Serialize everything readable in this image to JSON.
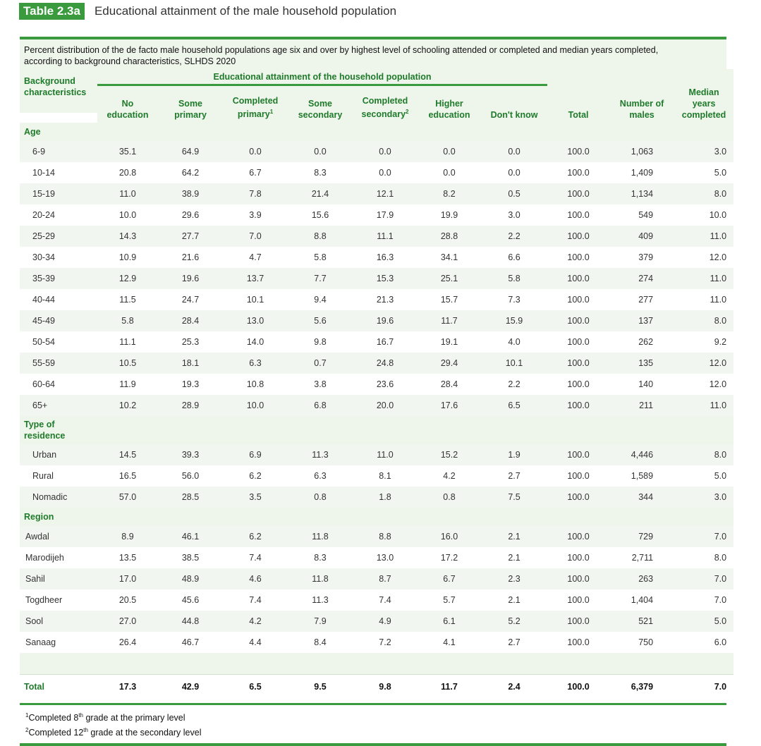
{
  "header": {
    "tag": "Table 2.3a",
    "title": "Educational attainment of the male household population"
  },
  "caption": {
    "line1": "Percent distribution of the de facto male household populations age six and over by highest level of schooling attended or completed and median years completed,",
    "line2": "according to background characteristics, SLHDS 2020"
  },
  "columns": {
    "background": [
      "Background",
      "characteristics"
    ],
    "group": "Educational attainment of the household population",
    "no_education": [
      "No",
      "education"
    ],
    "some_primary": [
      "Some",
      "primary"
    ],
    "completed_primary": [
      "Completed",
      "primary"
    ],
    "some_secondary": [
      "Some",
      "secondary"
    ],
    "completed_secondary": [
      "Completed",
      "secondary"
    ],
    "higher_education": [
      "Higher",
      "education"
    ],
    "dont_know": "Don't know",
    "total": "Total",
    "number_of_males": [
      "Number of",
      "males"
    ],
    "median": [
      "Median",
      "years",
      "completed"
    ],
    "sup1": "1",
    "sup2": "2"
  },
  "sections": [
    {
      "title": "Age",
      "rows": [
        {
          "label": "6-9",
          "cells": [
            "35.1",
            "64.9",
            "0.0",
            "0.0",
            "0.0",
            "0.0",
            "0.0",
            "100.0",
            "1,063",
            "3.0"
          ]
        },
        {
          "label": "10-14",
          "cells": [
            "20.8",
            "64.2",
            "6.7",
            "8.3",
            "0.0",
            "0.0",
            "0.0",
            "100.0",
            "1,409",
            "5.0"
          ]
        },
        {
          "label": "15-19",
          "cells": [
            "11.0",
            "38.9",
            "7.8",
            "21.4",
            "12.1",
            "8.2",
            "0.5",
            "100.0",
            "1,134",
            "8.0"
          ]
        },
        {
          "label": "20-24",
          "cells": [
            "10.0",
            "29.6",
            "3.9",
            "15.6",
            "17.9",
            "19.9",
            "3.0",
            "100.0",
            "549",
            "10.0"
          ]
        },
        {
          "label": "25-29",
          "cells": [
            "14.3",
            "27.7",
            "7.0",
            "8.8",
            "11.1",
            "28.8",
            "2.2",
            "100.0",
            "409",
            "11.0"
          ]
        },
        {
          "label": "30-34",
          "cells": [
            "10.9",
            "21.6",
            "4.7",
            "5.8",
            "16.3",
            "34.1",
            "6.6",
            "100.0",
            "379",
            "12.0"
          ]
        },
        {
          "label": "35-39",
          "cells": [
            "12.9",
            "19.6",
            "13.7",
            "7.7",
            "15.3",
            "25.1",
            "5.8",
            "100.0",
            "274",
            "11.0"
          ]
        },
        {
          "label": "40-44",
          "cells": [
            "11.5",
            "24.7",
            "10.1",
            "9.4",
            "21.3",
            "15.7",
            "7.3",
            "100.0",
            "277",
            "11.0"
          ]
        },
        {
          "label": "45-49",
          "cells": [
            "5.8",
            "28.4",
            "13.0",
            "5.6",
            "19.6",
            "11.7",
            "15.9",
            "100.0",
            "137",
            "8.0"
          ]
        },
        {
          "label": "50-54",
          "cells": [
            "11.1",
            "25.3",
            "14.0",
            "9.8",
            "16.7",
            "19.1",
            "4.0",
            "100.0",
            "262",
            "9.2"
          ]
        },
        {
          "label": "55-59",
          "cells": [
            "10.5",
            "18.1",
            "6.3",
            "0.7",
            "24.8",
            "29.4",
            "10.1",
            "100.0",
            "135",
            "12.0"
          ]
        },
        {
          "label": "60-64",
          "cells": [
            "11.9",
            "19.3",
            "10.8",
            "3.8",
            "23.6",
            "28.4",
            "2.2",
            "100.0",
            "140",
            "12.0"
          ]
        },
        {
          "label": "65+",
          "cells": [
            "10.2",
            "28.9",
            "10.0",
            "6.8",
            "20.0",
            "17.6",
            "6.5",
            "100.0",
            "211",
            "11.0"
          ]
        }
      ]
    },
    {
      "title_lines": [
        "Type of",
        "residence"
      ],
      "rows": [
        {
          "label": "Urban",
          "cells": [
            "14.5",
            "39.3",
            "6.9",
            "11.3",
            "11.0",
            "15.2",
            "1.9",
            "100.0",
            "4,446",
            "8.0"
          ]
        },
        {
          "label": "Rural",
          "cells": [
            "16.5",
            "56.0",
            "6.2",
            "6.3",
            "8.1",
            "4.2",
            "2.7",
            "100.0",
            "1,589",
            "5.0"
          ]
        },
        {
          "label": "Nomadic",
          "cells": [
            "57.0",
            "28.5",
            "3.5",
            "0.8",
            "1.8",
            "0.8",
            "7.5",
            "100.0",
            "344",
            "3.0"
          ]
        }
      ]
    },
    {
      "title": "Region",
      "rows": [
        {
          "label": "Awdal",
          "cells": [
            "8.9",
            "46.1",
            "6.2",
            "11.8",
            "8.8",
            "16.0",
            "2.1",
            "100.0",
            "729",
            "7.0"
          ]
        },
        {
          "label": "Marodijeh",
          "cells": [
            "13.5",
            "38.5",
            "7.4",
            "8.3",
            "13.0",
            "17.2",
            "2.1",
            "100.0",
            "2,711",
            "8.0"
          ]
        },
        {
          "label": "Sahil",
          "cells": [
            "17.0",
            "48.9",
            "4.6",
            "11.8",
            "8.7",
            "6.7",
            "2.3",
            "100.0",
            "263",
            "7.0"
          ]
        },
        {
          "label": "Togdheer",
          "cells": [
            "20.5",
            "45.6",
            "7.4",
            "11.3",
            "7.4",
            "5.7",
            "2.1",
            "100.0",
            "1,404",
            "7.0"
          ]
        },
        {
          "label": "Sool",
          "cells": [
            "27.0",
            "44.8",
            "4.2",
            "7.9",
            "4.9",
            "6.1",
            "5.2",
            "100.0",
            "521",
            "5.0"
          ]
        },
        {
          "label": "Sanaag",
          "cells": [
            "26.4",
            "46.7",
            "4.4",
            "8.4",
            "7.2",
            "4.1",
            "2.7",
            "100.0",
            "750",
            "6.0"
          ]
        }
      ]
    }
  ],
  "total": {
    "label": "Total",
    "cells": [
      "17.3",
      "42.9",
      "6.5",
      "9.5",
      "9.8",
      "11.7",
      "2.4",
      "100.0",
      "6,379",
      "7.0"
    ]
  },
  "footnotes": [
    {
      "mark": "1",
      "pre": "Completed 8",
      "sup": "th",
      "post": " grade at the primary level"
    },
    {
      "mark": "2",
      "pre": "Completed 12",
      "sup": "th",
      "post": " grade at the secondary level"
    }
  ],
  "colors": {
    "accent": "#3a9a3e",
    "shade": "#f1f6f0",
    "header_text": "#1f7a2a"
  }
}
